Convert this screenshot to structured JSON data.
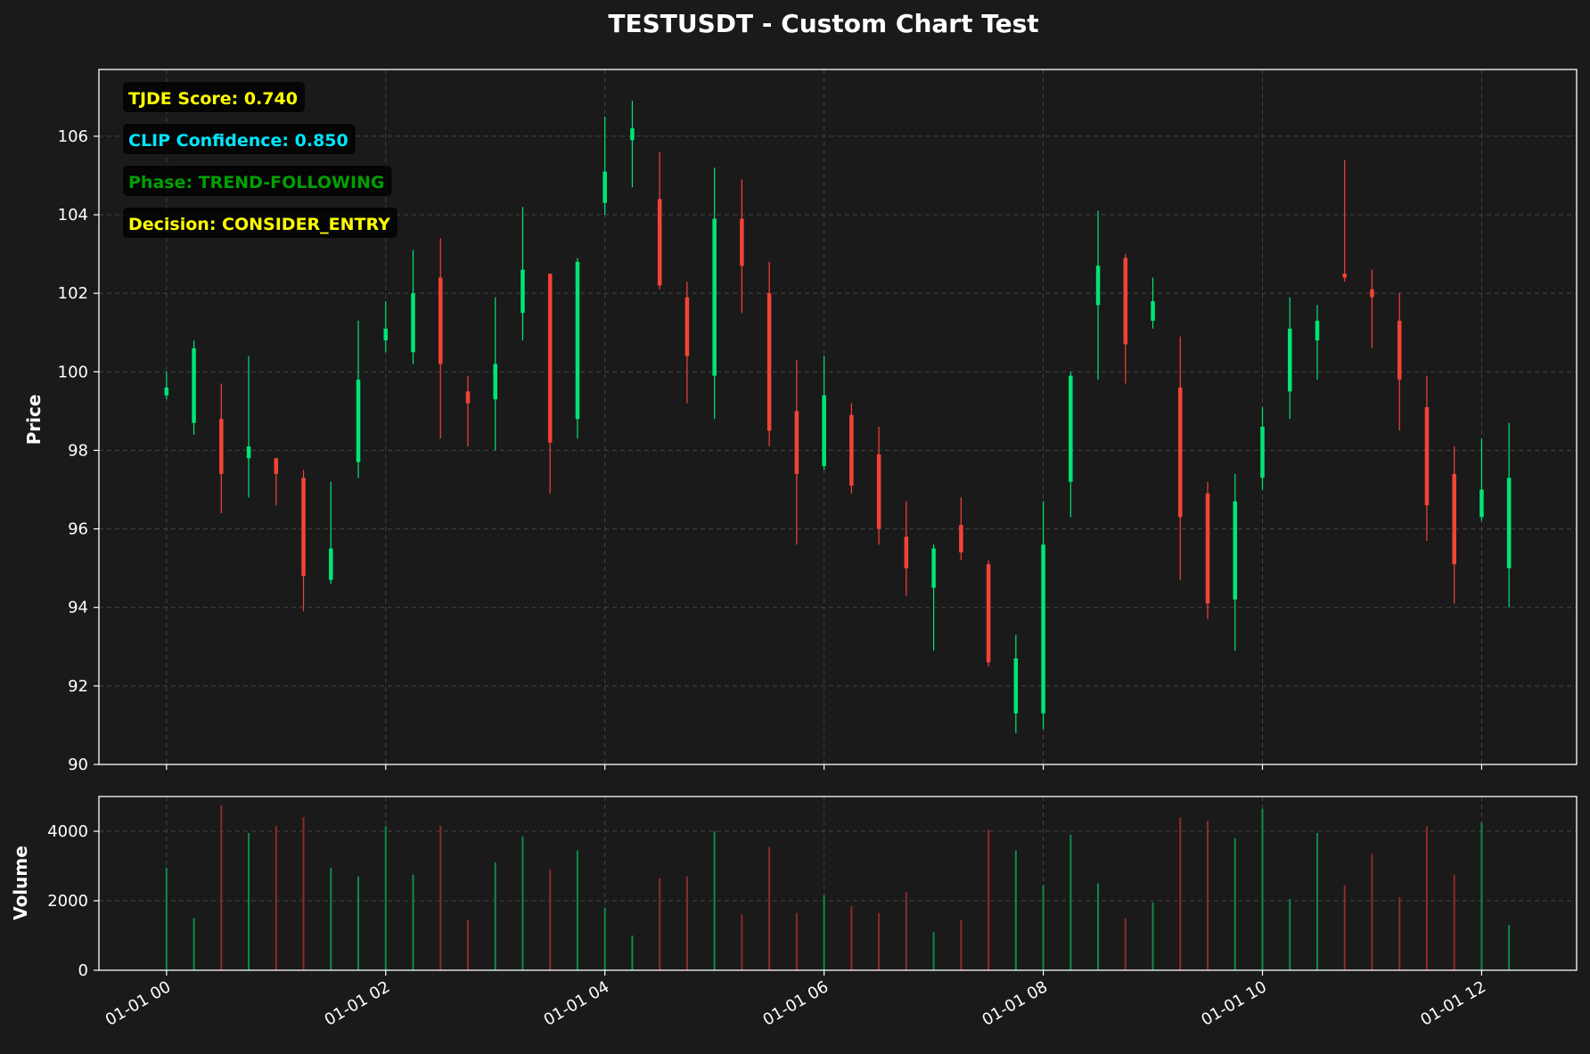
{
  "chart_data": {
    "type": "candlestick",
    "title": "TESTUSDT - Custom Chart Test",
    "price_panel": {
      "ylabel": "Price",
      "ylim": [
        90,
        107.7
      ],
      "yticks": [
        90,
        92,
        94,
        96,
        98,
        100,
        102,
        104,
        106
      ],
      "grid": true
    },
    "volume_panel": {
      "ylabel": "Volume",
      "ylim": [
        0,
        5000
      ],
      "yticks": [
        0,
        2000,
        4000
      ],
      "grid": true
    },
    "x_axis": {
      "unit": "minutes",
      "xlim": [
        -37,
        772
      ],
      "tick_values": [
        0,
        120,
        240,
        360,
        480,
        600,
        720
      ],
      "tick_labels": [
        "01-01 00",
        "01-01 02",
        "01-01 04",
        "01-01 06",
        "01-01 08",
        "01-01 10",
        "01-01 12"
      ]
    },
    "colors": {
      "up": "#00e676",
      "down": "#f44336",
      "up_volume": "#0f8a4a",
      "down_volume": "#8f2a2a",
      "background": "#1a1a1a",
      "axes_edge": "#ffffff",
      "text": "#ffffff",
      "grid": "#444444"
    },
    "annotations": [
      {
        "text": "TJDE Score: 0.740",
        "color": "#ffff00"
      },
      {
        "text": "CLIP Confidence: 0.850",
        "color": "#00e5ff"
      },
      {
        "text": "Phase: TREND-FOLLOWING",
        "color": "#00a000"
      },
      {
        "text": "Decision: CONSIDER_ENTRY",
        "color": "#ffff00"
      }
    ],
    "candles": [
      {
        "time": "01-01 00:00",
        "t": 0,
        "open": 99.4,
        "high": 100.0,
        "low": 99.3,
        "close": 99.6,
        "volume": 2950
      },
      {
        "time": "01-01 00:15",
        "t": 15,
        "open": 98.7,
        "high": 100.8,
        "low": 98.4,
        "close": 100.6,
        "volume": 1500
      },
      {
        "time": "01-01 00:30",
        "t": 30,
        "open": 98.8,
        "high": 99.7,
        "low": 96.4,
        "close": 97.4,
        "volume": 4750
      },
      {
        "time": "01-01 00:45",
        "t": 45,
        "open": 97.8,
        "high": 100.4,
        "low": 96.8,
        "close": 98.1,
        "volume": 3950
      },
      {
        "time": "01-01 01:00",
        "t": 60,
        "open": 97.8,
        "high": 97.8,
        "low": 96.6,
        "close": 97.4,
        "volume": 4150
      },
      {
        "time": "01-01 01:15",
        "t": 75,
        "open": 97.3,
        "high": 97.5,
        "low": 93.9,
        "close": 94.8,
        "volume": 4400
      },
      {
        "time": "01-01 01:30",
        "t": 90,
        "open": 94.7,
        "high": 97.2,
        "low": 94.6,
        "close": 95.5,
        "volume": 2950
      },
      {
        "time": "01-01 01:45",
        "t": 105,
        "open": 97.7,
        "high": 101.3,
        "low": 97.3,
        "close": 99.8,
        "volume": 2700
      },
      {
        "time": "01-01 02:00",
        "t": 120,
        "open": 100.8,
        "high": 101.8,
        "low": 100.5,
        "close": 101.1,
        "volume": 4150
      },
      {
        "time": "01-01 02:15",
        "t": 135,
        "open": 100.5,
        "high": 103.1,
        "low": 100.2,
        "close": 102.0,
        "volume": 2750
      },
      {
        "time": "01-01 02:30",
        "t": 150,
        "open": 102.4,
        "high": 103.4,
        "low": 98.3,
        "close": 100.2,
        "volume": 4150
      },
      {
        "time": "01-01 02:45",
        "t": 165,
        "open": 99.5,
        "high": 99.9,
        "low": 98.1,
        "close": 99.2,
        "volume": 1450
      },
      {
        "time": "01-01 03:00",
        "t": 180,
        "open": 99.3,
        "high": 101.9,
        "low": 98.0,
        "close": 100.2,
        "volume": 3100
      },
      {
        "time": "01-01 03:15",
        "t": 195,
        "open": 101.5,
        "high": 104.2,
        "low": 100.8,
        "close": 102.6,
        "volume": 3850
      },
      {
        "time": "01-01 03:30",
        "t": 210,
        "open": 102.5,
        "high": 102.5,
        "low": 96.9,
        "close": 98.2,
        "volume": 2900
      },
      {
        "time": "01-01 03:45",
        "t": 225,
        "open": 98.8,
        "high": 102.9,
        "low": 98.3,
        "close": 102.8,
        "volume": 3450
      },
      {
        "time": "01-01 04:00",
        "t": 240,
        "open": 104.3,
        "high": 106.5,
        "low": 104.0,
        "close": 105.1,
        "volume": 1800
      },
      {
        "time": "01-01 04:15",
        "t": 255,
        "open": 105.9,
        "high": 106.9,
        "low": 104.7,
        "close": 106.2,
        "volume": 1000
      },
      {
        "time": "01-01 04:30",
        "t": 270,
        "open": 104.4,
        "high": 105.6,
        "low": 102.1,
        "close": 102.2,
        "volume": 2650
      },
      {
        "time": "01-01 04:45",
        "t": 285,
        "open": 101.9,
        "high": 102.3,
        "low": 99.2,
        "close": 100.4,
        "volume": 2700
      },
      {
        "time": "01-01 05:00",
        "t": 300,
        "open": 99.9,
        "high": 105.2,
        "low": 98.8,
        "close": 103.9,
        "volume": 4000
      },
      {
        "time": "01-01 05:15",
        "t": 315,
        "open": 103.9,
        "high": 104.9,
        "low": 101.5,
        "close": 102.7,
        "volume": 1600
      },
      {
        "time": "01-01 05:30",
        "t": 330,
        "open": 102.0,
        "high": 102.8,
        "low": 98.1,
        "close": 98.5,
        "volume": 3550
      },
      {
        "time": "01-01 05:45",
        "t": 345,
        "open": 99.0,
        "high": 100.3,
        "low": 95.6,
        "close": 97.4,
        "volume": 1650
      },
      {
        "time": "01-01 06:00",
        "t": 360,
        "open": 97.6,
        "high": 100.4,
        "low": 97.5,
        "close": 99.4,
        "volume": 2150
      },
      {
        "time": "01-01 06:15",
        "t": 375,
        "open": 98.9,
        "high": 99.2,
        "low": 96.9,
        "close": 97.1,
        "volume": 1850
      },
      {
        "time": "01-01 06:30",
        "t": 390,
        "open": 97.9,
        "high": 98.6,
        "low": 95.6,
        "close": 96.0,
        "volume": 1650
      },
      {
        "time": "01-01 06:45",
        "t": 405,
        "open": 95.8,
        "high": 96.7,
        "low": 94.3,
        "close": 95.0,
        "volume": 2250
      },
      {
        "time": "01-01 07:00",
        "t": 420,
        "open": 94.5,
        "high": 95.6,
        "low": 92.9,
        "close": 95.5,
        "volume": 1100
      },
      {
        "time": "01-01 07:15",
        "t": 435,
        "open": 96.1,
        "high": 96.8,
        "low": 95.2,
        "close": 95.4,
        "volume": 1450
      },
      {
        "time": "01-01 07:30",
        "t": 450,
        "open": 95.1,
        "high": 95.2,
        "low": 92.5,
        "close": 92.6,
        "volume": 4050
      },
      {
        "time": "01-01 07:45",
        "t": 465,
        "open": 91.3,
        "high": 93.3,
        "low": 90.8,
        "close": 92.7,
        "volume": 3450
      },
      {
        "time": "01-01 08:00",
        "t": 480,
        "open": 91.3,
        "high": 96.7,
        "low": 90.9,
        "close": 95.6,
        "volume": 2450
      },
      {
        "time": "01-01 08:15",
        "t": 495,
        "open": 97.2,
        "high": 100.0,
        "low": 96.3,
        "close": 99.9,
        "volume": 3900
      },
      {
        "time": "01-01 08:30",
        "t": 510,
        "open": 101.7,
        "high": 104.1,
        "low": 99.8,
        "close": 102.7,
        "volume": 2500
      },
      {
        "time": "01-01 08:45",
        "t": 525,
        "open": 102.9,
        "high": 103.0,
        "low": 99.7,
        "close": 100.7,
        "volume": 1500
      },
      {
        "time": "01-01 09:00",
        "t": 540,
        "open": 101.3,
        "high": 102.4,
        "low": 101.1,
        "close": 101.8,
        "volume": 1950
      },
      {
        "time": "01-01 09:15",
        "t": 555,
        "open": 99.6,
        "high": 100.9,
        "low": 94.7,
        "close": 96.3,
        "volume": 4400
      },
      {
        "time": "01-01 09:30",
        "t": 570,
        "open": 96.9,
        "high": 97.2,
        "low": 93.7,
        "close": 94.1,
        "volume": 4300
      },
      {
        "time": "01-01 09:45",
        "t": 585,
        "open": 94.2,
        "high": 97.4,
        "low": 92.9,
        "close": 96.7,
        "volume": 3800
      },
      {
        "time": "01-01 10:00",
        "t": 600,
        "open": 97.3,
        "high": 99.1,
        "low": 97.0,
        "close": 98.6,
        "volume": 4650
      },
      {
        "time": "01-01 10:15",
        "t": 615,
        "open": 99.5,
        "high": 101.9,
        "low": 98.8,
        "close": 101.1,
        "volume": 2050
      },
      {
        "time": "01-01 10:30",
        "t": 630,
        "open": 100.8,
        "high": 101.7,
        "low": 99.8,
        "close": 101.3,
        "volume": 3950
      },
      {
        "time": "01-01 10:45",
        "t": 645,
        "open": 102.5,
        "high": 105.4,
        "low": 102.3,
        "close": 102.4,
        "volume": 2450
      },
      {
        "time": "01-01 11:00",
        "t": 660,
        "open": 102.1,
        "high": 102.6,
        "low": 100.6,
        "close": 101.9,
        "volume": 3350
      },
      {
        "time": "01-01 11:15",
        "t": 675,
        "open": 101.3,
        "high": 102.0,
        "low": 98.5,
        "close": 99.8,
        "volume": 2100
      },
      {
        "time": "01-01 11:30",
        "t": 690,
        "open": 99.1,
        "high": 99.9,
        "low": 95.7,
        "close": 96.6,
        "volume": 4150
      },
      {
        "time": "01-01 11:45",
        "t": 705,
        "open": 97.4,
        "high": 98.1,
        "low": 94.1,
        "close": 95.1,
        "volume": 2750
      },
      {
        "time": "01-01 12:00",
        "t": 720,
        "open": 96.3,
        "high": 98.3,
        "low": 96.2,
        "close": 97.0,
        "volume": 4250
      },
      {
        "time": "01-01 12:15",
        "t": 735,
        "open": 95.0,
        "high": 98.7,
        "low": 94.0,
        "close": 97.3,
        "volume": 1300
      }
    ]
  }
}
